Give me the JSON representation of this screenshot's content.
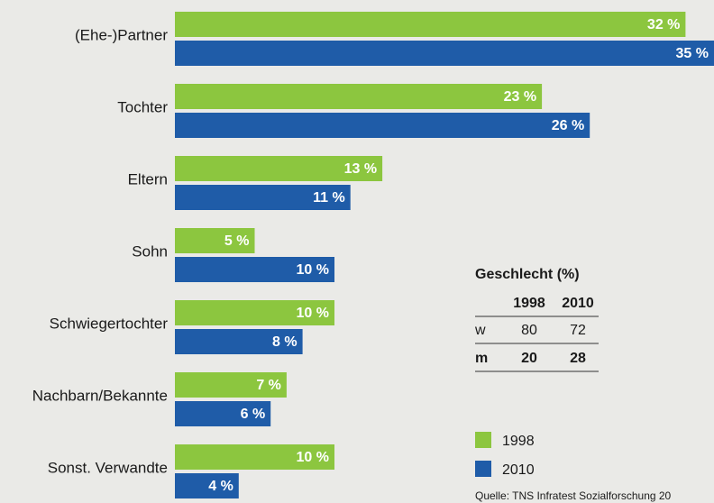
{
  "chart_data": {
    "type": "bar",
    "orientation": "horizontal",
    "categories": [
      "(Ehe-)Partner",
      "Tochter",
      "Eltern",
      "Sohn",
      "Schwiegertochter",
      "Nachbarn/Bekannte",
      "Sonst. Verwandte"
    ],
    "series": [
      {
        "name": "1998",
        "color": "#8cc63f",
        "values": [
          32,
          23,
          13,
          5,
          10,
          7,
          10
        ],
        "value_labels": [
          "32 %",
          "23 %",
          "13 %",
          "5 %",
          "10 %",
          "7 %",
          "10 %"
        ]
      },
      {
        "name": "2010",
        "color": "#1f5ca8",
        "values": [
          35,
          26,
          11,
          10,
          8,
          6,
          4
        ],
        "value_labels": [
          "35 %",
          "26 %",
          "11 %",
          "10 %",
          "8 %",
          "6 %",
          "4 %"
        ]
      }
    ],
    "table": {
      "title": "Geschlecht (%)",
      "header": [
        "1998",
        "2010"
      ],
      "rows": [
        [
          "w",
          80,
          72
        ],
        [
          "m",
          20,
          28
        ]
      ]
    },
    "source": "Quelle: TNS Infratest Sozialforschung 20"
  }
}
